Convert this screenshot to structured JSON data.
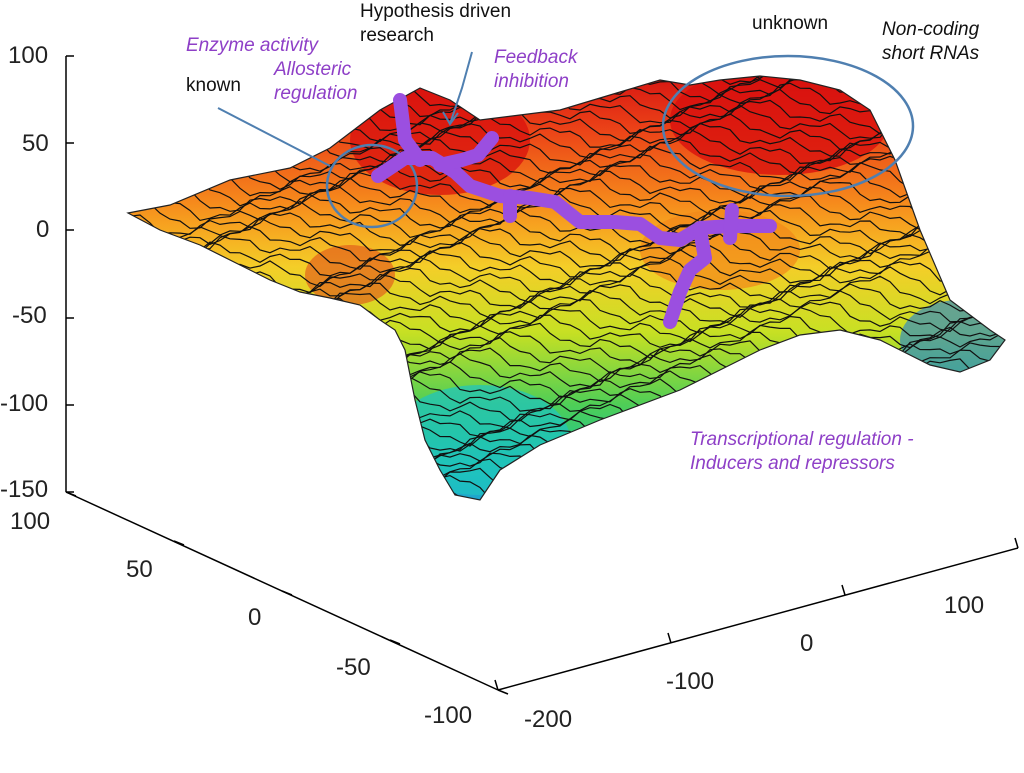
{
  "axes": {
    "z_ticks": [
      "100",
      "50",
      "0",
      "-50",
      "-100",
      "-150"
    ],
    "y_ticks": [
      "100",
      "50",
      "0",
      "-50",
      "-100"
    ],
    "x_ticks": [
      "100",
      "0",
      "-100",
      "-200"
    ]
  },
  "annotations": {
    "enzyme_activity": "Enzyme activity",
    "known": "known",
    "allosteric": [
      "Allosteric",
      "regulation"
    ],
    "hypothesis": [
      "Hypothesis driven",
      "research"
    ],
    "feedback": [
      "Feedback",
      "inhibition"
    ],
    "unknown": "unknown",
    "noncoding": [
      "Non-coding",
      "short RNAs"
    ],
    "transcriptional": [
      "Transcriptional regulation -",
      "Inducers and repressors"
    ]
  },
  "colors": {
    "annotation_purple": "#8e3fc7",
    "path_purple": "#9b4fe0",
    "circle_blue": "#4f7fb0",
    "contour": "#111111"
  }
}
